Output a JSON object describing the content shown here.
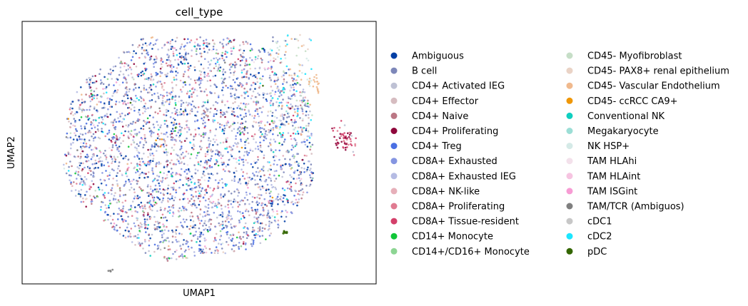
{
  "chart_data": {
    "type": "scatter",
    "title": "cell_type",
    "xlabel": "UMAP1",
    "ylabel": "UMAP2",
    "xlim": [
      0,
      100
    ],
    "ylim": [
      0,
      100
    ],
    "grid": false,
    "legend_position": "right",
    "legend_columns": 2,
    "series": [
      {
        "name": "Ambiguous",
        "color": "#023fa5"
      },
      {
        "name": "B cell",
        "color": "#7d87b9"
      },
      {
        "name": "CD4+ Activated IEG",
        "color": "#bec1d4"
      },
      {
        "name": "CD4+ Effector",
        "color": "#d6bcc0"
      },
      {
        "name": "CD4+ Naive",
        "color": "#bb7784"
      },
      {
        "name": "CD4+ Proliferating",
        "color": "#8e063b"
      },
      {
        "name": "CD4+ Treg",
        "color": "#4a6fe3"
      },
      {
        "name": "CD8A+ Exhausted",
        "color": "#8595e1"
      },
      {
        "name": "CD8A+ Exhausted IEG",
        "color": "#b5bbe3"
      },
      {
        "name": "CD8A+ NK-like",
        "color": "#e6afb9"
      },
      {
        "name": "CD8A+ Proliferating",
        "color": "#e07b91"
      },
      {
        "name": "CD8A+ Tissue-resident",
        "color": "#d33f6a"
      },
      {
        "name": "CD14+ Monocyte",
        "color": "#11c638"
      },
      {
        "name": "CD14+/CD16+ Monocyte",
        "color": "#8dd593"
      },
      {
        "name": "CD45- Myofibroblast",
        "color": "#c6dec7"
      },
      {
        "name": "CD45- PAX8+ renal epithelium",
        "color": "#ead3c6"
      },
      {
        "name": "CD45- Vascular Endothelium",
        "color": "#f0b98d"
      },
      {
        "name": "CD45- ccRCC CA9+",
        "color": "#ef9708"
      },
      {
        "name": "Conventional NK",
        "color": "#0fcfc0"
      },
      {
        "name": "Megakaryocyte",
        "color": "#9cded6"
      },
      {
        "name": "NK HSP+",
        "color": "#d5eae7"
      },
      {
        "name": "TAM HLAhi",
        "color": "#f3e1eb"
      },
      {
        "name": "TAM HLAint",
        "color": "#f6c4e1"
      },
      {
        "name": "TAM ISGint",
        "color": "#f79cd4"
      },
      {
        "name": "TAM/TCR (Ambiguos)",
        "color": "#7f7f7f"
      },
      {
        "name": "cDC1",
        "color": "#c7c7c7"
      },
      {
        "name": "cDC2",
        "color": "#1ce6ff"
      },
      {
        "name": "pDC",
        "color": "#336600"
      }
    ]
  }
}
